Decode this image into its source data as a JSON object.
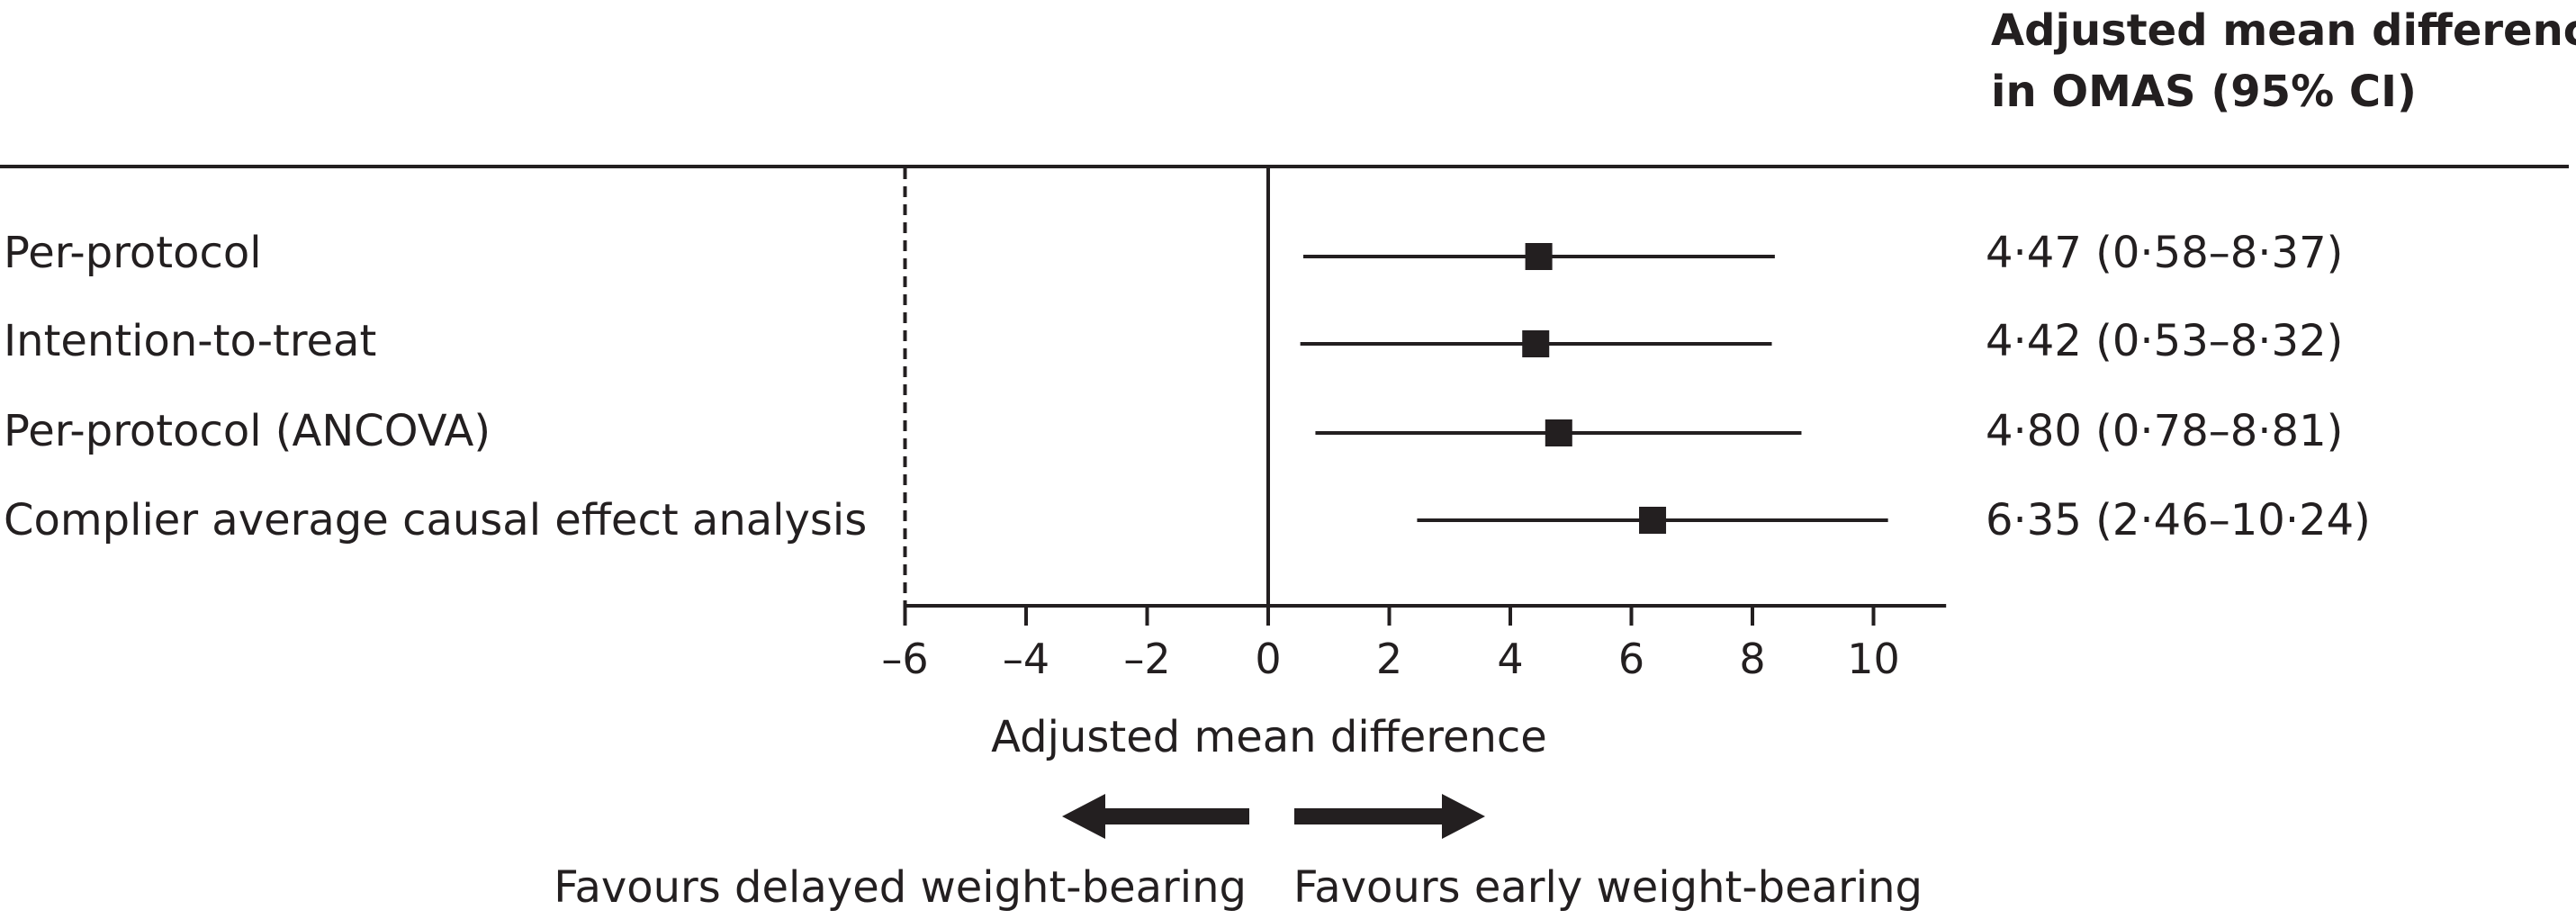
{
  "chart_data": {
    "type": "forest",
    "header": {
      "line1": "Adjusted mean difference",
      "line2": "in OMAS (95% CI)"
    },
    "rows": [
      {
        "label": "Per-protocol",
        "estimate": 4.47,
        "lower": 0.58,
        "upper": 8.37,
        "ci_text": "4·47 (0·58–8·37)"
      },
      {
        "label": "Intention-to-treat",
        "estimate": 4.42,
        "lower": 0.53,
        "upper": 8.32,
        "ci_text": "4·42 (0·53–8·32)"
      },
      {
        "label": "Per-protocol (ANCOVA)",
        "estimate": 4.8,
        "lower": 0.78,
        "upper": 8.81,
        "ci_text": "4·80 (0·78–8·81)"
      },
      {
        "label": "Complier average causal effect analysis",
        "estimate": 6.35,
        "lower": 2.46,
        "upper": 10.24,
        "ci_text": "6·35 (2·46–10·24)"
      }
    ],
    "x_axis": {
      "label": "Adjusted mean difference",
      "ticks": [
        -6,
        -4,
        -2,
        0,
        2,
        4,
        6,
        8,
        10
      ],
      "tick_labels": [
        "–6",
        "–4",
        "–2",
        "0",
        "2",
        "4",
        "6",
        "8",
        "10"
      ],
      "xlim": [
        -6,
        11.2
      ],
      "reference_line": 0,
      "dashed_line": -6
    },
    "direction": {
      "left": "Favours delayed weight-bearing",
      "right": "Favours early weight-bearing"
    },
    "colors": {
      "ink": "#231f20"
    }
  }
}
